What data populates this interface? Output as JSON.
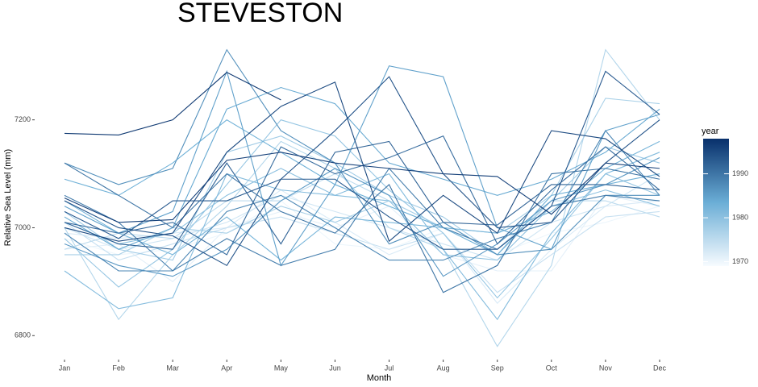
{
  "chart_data": {
    "type": "line",
    "title": "STEVESTON",
    "x_label": "Month",
    "y_label": "Relative Sea Level (mm)",
    "categories": [
      "Jan",
      "Feb",
      "Mar",
      "Apr",
      "May",
      "Jun",
      "Jul",
      "Aug",
      "Sep",
      "Oct",
      "Nov",
      "Dec"
    ],
    "ylim": [
      6775,
      7340
    ],
    "yticks": [
      6800,
      7000,
      7200
    ],
    "grid": false,
    "colorbar_title": "year",
    "colorscale": [
      "#f7fbff",
      "#6baed6",
      "#08306b"
    ],
    "colorlim": [
      1969,
      1998
    ],
    "colorticks": [
      1970,
      1980,
      1990
    ],
    "series": [
      {
        "year": 1997,
        "values": [
          7175,
          7172,
          7200,
          7288,
          7237,
          null,
          null,
          null,
          null,
          null,
          null,
          null
        ]
      },
      {
        "year": 1996,
        "values": [
          7055,
          7010,
          7015,
          7125,
          7140,
          7120,
          7110,
          7100,
          7095,
          7025,
          7120,
          7110
        ]
      },
      {
        "year": 1995,
        "values": [
          7000,
          6975,
          6990,
          7140,
          7225,
          7270,
          6975,
          7060,
          6990,
          7180,
          7165,
          7095
        ]
      },
      {
        "year": 1994,
        "values": [
          7050,
          7000,
          6985,
          6930,
          7090,
          7180,
          7280,
          7100,
          7000,
          7010,
          7120,
          7200
        ]
      },
      {
        "year": 1993,
        "values": [
          7030,
          6980,
          7050,
          7050,
          7090,
          7090,
          7020,
          6960,
          6960,
          7040,
          7290,
          7210
        ]
      },
      {
        "year": 1992,
        "values": [
          7010,
          6970,
          6960,
          7120,
          6970,
          7140,
          7160,
          7010,
          7005,
          7080,
          7080,
          7070
        ]
      },
      {
        "year": 1991,
        "values": [
          7010,
          6990,
          7010,
          6950,
          7150,
          7100,
          7130,
          7170,
          6970,
          7070,
          7150,
          7070
        ]
      },
      {
        "year": 1990,
        "values": [
          7120,
          7060,
          7000,
          7100,
          7030,
          6990,
          7080,
          6880,
          6930,
          7100,
          7110,
          7090
        ]
      },
      {
        "year": 1989,
        "values": [
          7060,
          7010,
          6920,
          6980,
          6930,
          6960,
          7110,
          7000,
          6960,
          7040,
          7060,
          7050
        ]
      },
      {
        "year": 1988,
        "values": [
          6990,
          6920,
          6920,
          7030,
          7060,
          7000,
          6940,
          6940,
          6980,
          7010,
          7180,
          7060
        ]
      },
      {
        "year": 1987,
        "values": [
          7120,
          7080,
          7110,
          7330,
          7180,
          7120,
          6970,
          7010,
          6950,
          6960,
          7060,
          7060
        ]
      },
      {
        "year": 1986,
        "values": [
          6970,
          6930,
          6910,
          6960,
          7050,
          7110,
          7060,
          6910,
          6970,
          7050,
          7080,
          7130
        ]
      },
      {
        "year": 1985,
        "values": [
          7040,
          6990,
          7030,
          7290,
          6930,
          7080,
          7300,
          7280,
          7000,
          6960,
          7180,
          7210
        ]
      },
      {
        "year": 1984,
        "values": [
          7020,
          6960,
          7000,
          7220,
          7260,
          7230,
          7120,
          7090,
          7060,
          7090,
          7140,
          7220
        ]
      },
      {
        "year": 1983,
        "values": [
          7090,
          7060,
          7120,
          7200,
          7140,
          7080,
          7040,
          7000,
          6950,
          7060,
          7080,
          7100
        ]
      },
      {
        "year": 1982,
        "values": [
          7050,
          6990,
          6950,
          7020,
          6940,
          7020,
          7010,
          7000,
          6990,
          7030,
          7110,
          7160
        ]
      },
      {
        "year": 1981,
        "values": [
          6920,
          6850,
          6870,
          7100,
          7070,
          7060,
          7100,
          6960,
          6830,
          6990,
          7100,
          7140
        ]
      },
      {
        "year": 1980,
        "values": [
          7010,
          6970,
          6990,
          7060,
          7110,
          7060,
          7050,
          6950,
          6940,
          7040,
          7070,
          7040
        ]
      },
      {
        "year": 1979,
        "values": [
          6980,
          6890,
          6960,
          7080,
          7200,
          7170,
          7070,
          6990,
          6870,
          6980,
          7100,
          7060
        ]
      },
      {
        "year": 1978,
        "values": [
          7030,
          6960,
          6940,
          7140,
          7170,
          7120,
          7060,
          7020,
          6950,
          7050,
          7150,
          7120
        ]
      },
      {
        "year": 1977,
        "values": [
          6950,
          6950,
          7000,
          6990,
          7040,
          7010,
          7050,
          7000,
          6990,
          7060,
          7240,
          7230
        ]
      },
      {
        "year": 1976,
        "values": [
          7000,
          6830,
          6950,
          7040,
          7160,
          7110,
          7000,
          6960,
          6780,
          6930,
          7330,
          7200
        ]
      },
      {
        "year": 1975,
        "values": [
          6960,
          6990,
          6980,
          7050,
          7050,
          7100,
          7050,
          7000,
          6960,
          7050,
          7050,
          7020
        ]
      },
      {
        "year": 1974,
        "values": [
          7010,
          6940,
          6970,
          7000,
          7020,
          6990,
          6960,
          6990,
          6880,
          6950,
          7020,
          7030
        ]
      },
      {
        "year": 1973,
        "values": [
          7000,
          6960,
          6980,
          7010,
          7060,
          7030,
          7000,
          6970,
          6940,
          7010,
          7040,
          7100
        ]
      },
      {
        "year": 1972,
        "values": [
          6990,
          6980,
          6990,
          7000,
          7070,
          7010,
          6950,
          6990,
          6860,
          6960,
          7040,
          7050
        ]
      },
      {
        "year": 1971,
        "values": [
          6960,
          6970,
          6900,
          7000,
          7030,
          7000,
          7040,
          6950,
          6920,
          6920,
          7060,
          7040
        ]
      },
      {
        "year": 1970,
        "values": [
          6980,
          6950,
          6960,
          6990,
          7050,
          6970,
          6960,
          7000,
          6950,
          6990,
          7010,
          7040
        ]
      }
    ]
  }
}
